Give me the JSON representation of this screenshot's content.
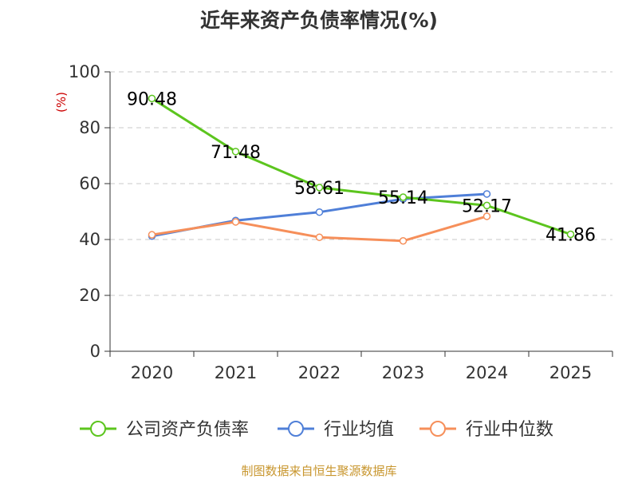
{
  "title": "近年来资产负债率情况(%)",
  "footer": "制图数据来自恒生聚源数据库",
  "chart_data": {
    "type": "line",
    "title": "近年来资产负债率情况(%)",
    "ylabel": "(%)",
    "xlabel": "",
    "categories": [
      "2020",
      "2021",
      "2022",
      "2023",
      "2024",
      "2025"
    ],
    "ylim": [
      0,
      100
    ],
    "yticks": [
      0,
      20,
      40,
      60,
      80,
      100
    ],
    "grid": "horizontal-dashed",
    "legend_position": "bottom",
    "series": [
      {
        "name": "公司资产负债率",
        "color": "#5cc51e",
        "values": [
          90.48,
          71.48,
          58.61,
          55.14,
          52.17,
          41.86
        ],
        "labels": [
          "90.48",
          "71.48",
          "58.61",
          "55.14",
          "52.17",
          "41.86"
        ]
      },
      {
        "name": "行业均值",
        "color": "#4f7fd8",
        "values": [
          41.2,
          46.8,
          49.8,
          54.5,
          56.3,
          null
        ]
      },
      {
        "name": "行业中位数",
        "color": "#f68f5a",
        "values": [
          41.7,
          46.3,
          40.8,
          39.5,
          48.3,
          null
        ]
      }
    ]
  }
}
